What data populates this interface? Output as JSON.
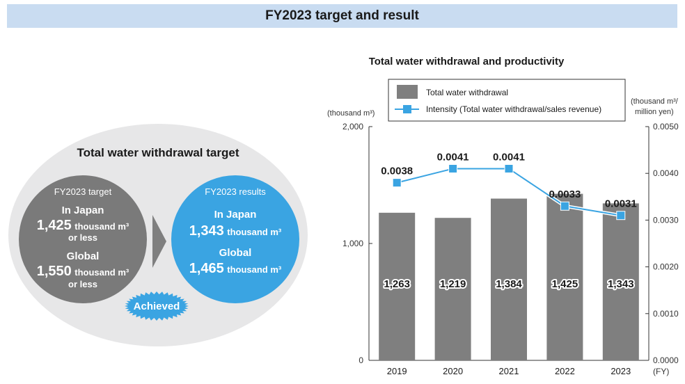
{
  "header": {
    "title": "FY2023 target and result"
  },
  "target_panel": {
    "title": "Total water withdrawal target",
    "target": {
      "heading": "FY2023 target",
      "japan_label": "In Japan",
      "japan_value": "1,425",
      "japan_unit": "thousand m³",
      "japan_qualifier": "or less",
      "global_label": "Global",
      "global_value": "1,550",
      "global_unit": "thousand m³",
      "global_qualifier": "or less"
    },
    "results": {
      "heading": "FY2023 results",
      "japan_label": "In Japan",
      "japan_value": "1,343",
      "japan_unit": "thousand m³",
      "global_label": "Global",
      "global_value": "1,465",
      "global_unit": "thousand m³"
    },
    "badge_label": "Achieved"
  },
  "chart_data": {
    "type": "bar",
    "title": "Total water withdrawal and productivity",
    "categories": [
      "2019",
      "2020",
      "2021",
      "2022",
      "2023"
    ],
    "x_unit": "(FY)",
    "series": [
      {
        "name": "Total water withdrawal",
        "type": "bar",
        "axis": "left",
        "color": "#7f7f7f",
        "values": [
          1263,
          1219,
          1384,
          1425,
          1343
        ],
        "labels": [
          "1,263",
          "1,219",
          "1,384",
          "1,425",
          "1,343"
        ]
      },
      {
        "name": "Intensity (Total water withdrawal/sales revenue)",
        "type": "line",
        "axis": "right",
        "color": "#3aa4e2",
        "values": [
          0.0038,
          0.0041,
          0.0041,
          0.0033,
          0.0031
        ],
        "labels": [
          "0.0038",
          "0.0041",
          "0.0041",
          "0.0033",
          "0.0031"
        ]
      }
    ],
    "y_left": {
      "unit": "(thousand m³)",
      "ylim": [
        0,
        2000
      ],
      "ticks": [
        0,
        1000,
        2000
      ],
      "tick_labels": [
        "0",
        "1,000",
        "2,000"
      ]
    },
    "y_right": {
      "unit_line1": "(thousand m³/",
      "unit_line2": "million yen)",
      "ylim": [
        0,
        0.005
      ],
      "ticks": [
        0,
        0.001,
        0.002,
        0.003,
        0.004,
        0.005
      ],
      "tick_labels": [
        "0.0000",
        "0.0010",
        "0.0020",
        "0.0030",
        "0.0040",
        "0.0050"
      ]
    },
    "legend": "top"
  }
}
